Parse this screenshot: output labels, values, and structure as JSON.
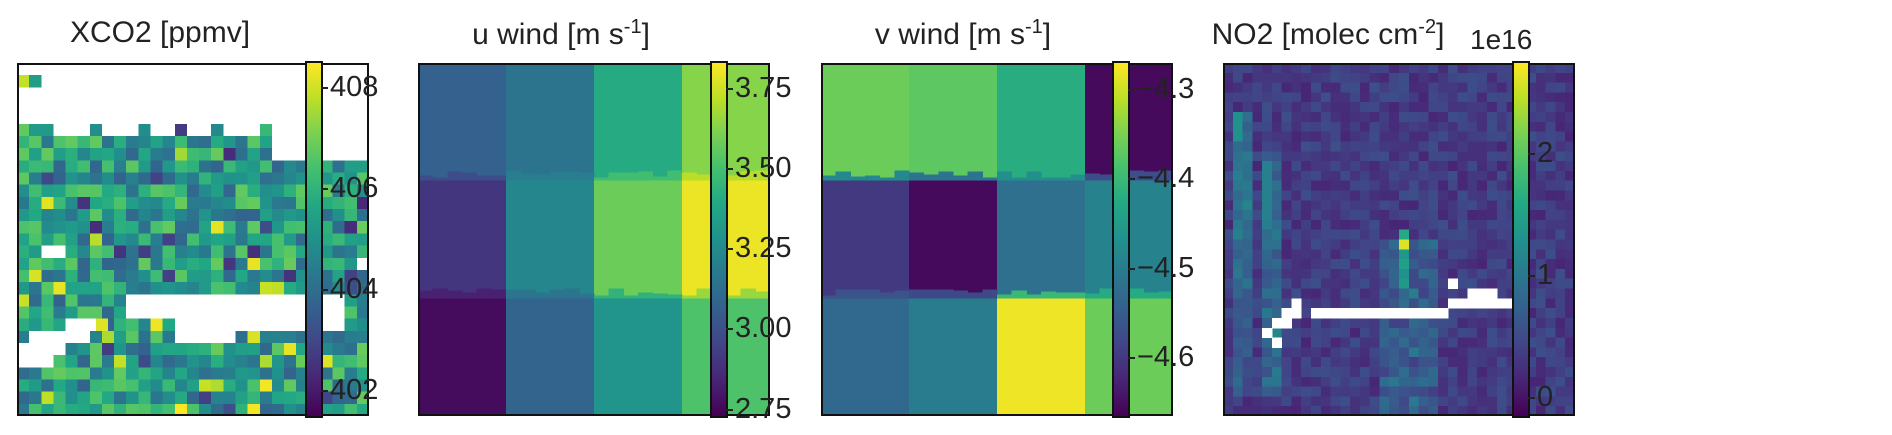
{
  "colors": {
    "viridis": [
      "#440154",
      "#482475",
      "#414487",
      "#355f8d",
      "#2a788e",
      "#21918c",
      "#22a884",
      "#44bf70",
      "#7ad151",
      "#bddf26",
      "#fde725"
    ],
    "frame": "#111111",
    "missing": "#ffffff"
  },
  "chart_data": [
    {
      "type": "heatmap",
      "title": "XCO2 [ppmv]",
      "colorbar": {
        "range": [
          401.5,
          408.5
        ],
        "ticks": [
          {
            "v": 402,
            "label": "402"
          },
          {
            "v": 404,
            "label": "404"
          },
          {
            "v": 406,
            "label": "406"
          },
          {
            "v": 408,
            "label": "408"
          }
        ]
      },
      "grid": {
        "cols": 29,
        "rows": 29,
        "base": 405.3,
        "spread": 1.6
      },
      "notes": "missing (white) pixels across top, mid-left and a horizontal band near bottom"
    },
    {
      "type": "heatmap",
      "title": "u wind [m s",
      "title_sup": "-1",
      "title_end": "]",
      "colorbar": {
        "range": [
          2.73,
          3.83
        ],
        "ticks": [
          {
            "v": 2.75,
            "label": "2.75"
          },
          {
            "v": 3.0,
            "label": "3.00"
          },
          {
            "v": 3.25,
            "label": "3.25"
          },
          {
            "v": 3.5,
            "label": "3.50"
          },
          {
            "v": 3.75,
            "label": "3.75"
          }
        ]
      },
      "blocks": [
        [
          3.07,
          3.15,
          3.4,
          3.63
        ],
        [
          2.9,
          3.23,
          3.58,
          3.8
        ],
        [
          2.76,
          3.08,
          3.3,
          3.52
        ]
      ]
    },
    {
      "type": "heatmap",
      "title": "v wind [m s",
      "title_sup": "-1",
      "title_end": "]",
      "colorbar": {
        "range": [
          -4.665,
          -4.27
        ],
        "ticks": [
          {
            "v": -4.3,
            "label": "−4.3"
          },
          {
            "v": -4.4,
            "label": "−4.4"
          },
          {
            "v": -4.5,
            "label": "−4.5"
          },
          {
            "v": -4.6,
            "label": "−4.6"
          }
        ]
      },
      "blocks": [
        [
          -4.36,
          -4.37,
          -4.42,
          -4.655
        ],
        [
          -4.6,
          -4.655,
          -4.52,
          -4.49
        ],
        [
          -4.53,
          -4.5,
          -4.28,
          -4.36
        ]
      ]
    },
    {
      "type": "heatmap",
      "title": "NO2 [molec cm",
      "title_sup": "-2",
      "title_end": "]",
      "offset_label": "1e16",
      "colorbar": {
        "range": [
          -0.15,
          2.75
        ],
        "ticks": [
          {
            "v": 0,
            "label": "0"
          },
          {
            "v": 1,
            "label": "1"
          },
          {
            "v": 2,
            "label": "2"
          }
        ]
      },
      "grid": {
        "cols": 36,
        "rows": 36,
        "base": 0.35,
        "spread": 0.2
      },
      "notes": "plume streaks on left and center; row of white missing pixels in lower middle"
    }
  ]
}
